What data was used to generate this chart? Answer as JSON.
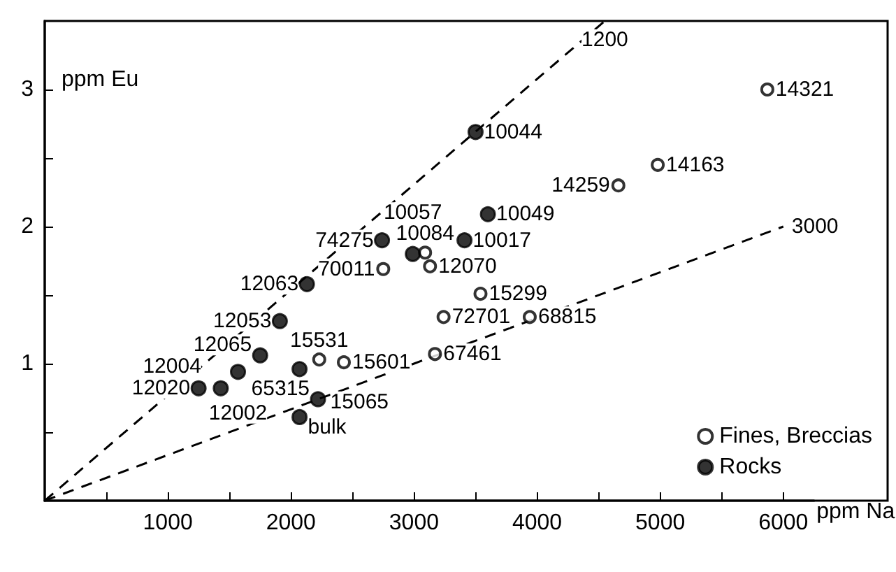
{
  "chart_data": {
    "type": "scatter",
    "xlabel": "ppm Na",
    "ylabel": "ppm Eu",
    "xlim": [
      0,
      6250
    ],
    "ylim": [
      0,
      3.5
    ],
    "xticks": [
      {
        "value": 500,
        "label": null
      },
      1000,
      {
        "value": 1500,
        "label": null
      },
      2000,
      {
        "value": 2500,
        "label": null
      },
      3000,
      {
        "value": 3500,
        "label": null
      },
      4000,
      {
        "value": 4500,
        "label": null
      },
      5000,
      {
        "value": 5500,
        "label": null
      },
      6000
    ],
    "yticks": [
      {
        "value": 0.5,
        "label": null
      },
      1,
      {
        "value": 1.5,
        "label": null
      },
      2,
      {
        "value": 2.5,
        "label": null
      },
      3
    ],
    "grid": false,
    "legend": "bottom right",
    "marker": "circle",
    "series": [
      {
        "name": "Fines, Breccias",
        "color": "#000000",
        "x": [
          5870,
          4980,
          4660,
          3940,
          3540,
          3240,
          3170,
          2750,
          3090,
          3130,
          2230,
          2430
        ],
        "values": [
          3.0,
          2.45,
          2.3,
          1.34,
          1.51,
          1.34,
          1.07,
          1.69,
          1.81,
          1.71,
          1.03,
          1.01
        ]
      },
      {
        "name": "Rocks",
        "color": "#000000",
        "x": [
          3500,
          3600,
          3410,
          2740,
          2990,
          2130,
          1910,
          1750,
          1570,
          1250,
          1430,
          2070,
          2220,
          2070
        ],
        "values": [
          2.69,
          2.09,
          1.9,
          1.9,
          1.8,
          1.58,
          1.31,
          1.06,
          0.94,
          0.82,
          0.82,
          0.96,
          0.74,
          0.61
        ]
      },
      {
        "type": "line",
        "name": "1200",
        "line_style": "dashed",
        "marker": "none",
        "color": "#000000",
        "x": [
          0,
          4550
        ],
        "values": [
          0,
          3.5
        ]
      },
      {
        "type": "line",
        "name": "3000",
        "line_style": "dashed",
        "marker": "none",
        "color": "#000000",
        "x": [
          0,
          6000
        ],
        "values": [
          0,
          2.0
        ]
      }
    ],
    "annotations": [
      {
        "text": "14321",
        "x": 5870,
        "y": 3.0
      },
      {
        "text": "14163",
        "x": 4980,
        "y": 2.45
      },
      {
        "text": "14259",
        "x": 4660,
        "y": 2.3
      },
      {
        "text": "68815",
        "x": 3940,
        "y": 1.34
      },
      {
        "text": "15299",
        "x": 3540,
        "y": 1.51
      },
      {
        "text": "72701",
        "x": 3240,
        "y": 1.34
      },
      {
        "text": "67461",
        "x": 3170,
        "y": 1.07
      },
      {
        "text": "70011",
        "x": 2750,
        "y": 1.69
      },
      {
        "text": "10084",
        "x": 3090,
        "y": 1.81
      },
      {
        "text": "12070",
        "x": 3130,
        "y": 1.71
      },
      {
        "text": "15531",
        "x": 2230,
        "y": 1.03
      },
      {
        "text": "15601",
        "x": 2430,
        "y": 1.01
      },
      {
        "text": "10044",
        "x": 3500,
        "y": 2.69
      },
      {
        "text": "10049",
        "x": 3600,
        "y": 2.09
      },
      {
        "text": "10017",
        "x": 3410,
        "y": 1.9
      },
      {
        "text": "74275",
        "x": 2740,
        "y": 1.9
      },
      {
        "text": "10057",
        "x": 2990,
        "y": 1.8
      },
      {
        "text": "12063",
        "x": 2130,
        "y": 1.58
      },
      {
        "text": "12053",
        "x": 1910,
        "y": 1.31
      },
      {
        "text": "12065",
        "x": 1750,
        "y": 1.06
      },
      {
        "text": "12002",
        "x": 1570,
        "y": 0.94
      },
      {
        "text": "12020",
        "x": 1250,
        "y": 0.82
      },
      {
        "text": "12004",
        "x": 1430,
        "y": 0.82
      },
      {
        "text": "15065",
        "x": 2070,
        "y": 0.96
      },
      {
        "text": "65315",
        "x": 2220,
        "y": 0.74
      },
      {
        "text": "bulk",
        "x": 2070,
        "y": 0.61
      }
    ]
  }
}
